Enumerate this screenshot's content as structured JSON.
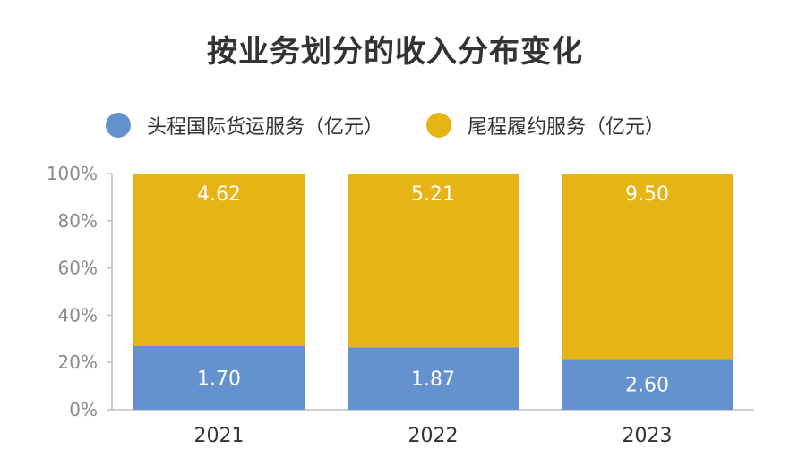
{
  "chart_data": {
    "type": "bar",
    "stacked": true,
    "normalized": true,
    "title": "按业务划分的收入分布变化",
    "categories": [
      "2021",
      "2022",
      "2023"
    ],
    "series": [
      {
        "name": "头程国际货运服务（亿元）",
        "values": [
          1.7,
          1.87,
          2.6
        ],
        "labels": [
          "1.70",
          "1.87",
          "2.60"
        ],
        "color": "#6492cf"
      },
      {
        "name": "尾程履约服务（亿元）",
        "values": [
          4.62,
          5.21,
          9.5
        ],
        "labels": [
          "4.62",
          "5.21",
          "9.50"
        ],
        "color": "#e7b416"
      }
    ],
    "yticks": [
      "0%",
      "20%",
      "40%",
      "60%",
      "80%",
      "100%"
    ],
    "ylim": [
      0,
      100
    ],
    "legend_position": "top",
    "grid": false
  }
}
